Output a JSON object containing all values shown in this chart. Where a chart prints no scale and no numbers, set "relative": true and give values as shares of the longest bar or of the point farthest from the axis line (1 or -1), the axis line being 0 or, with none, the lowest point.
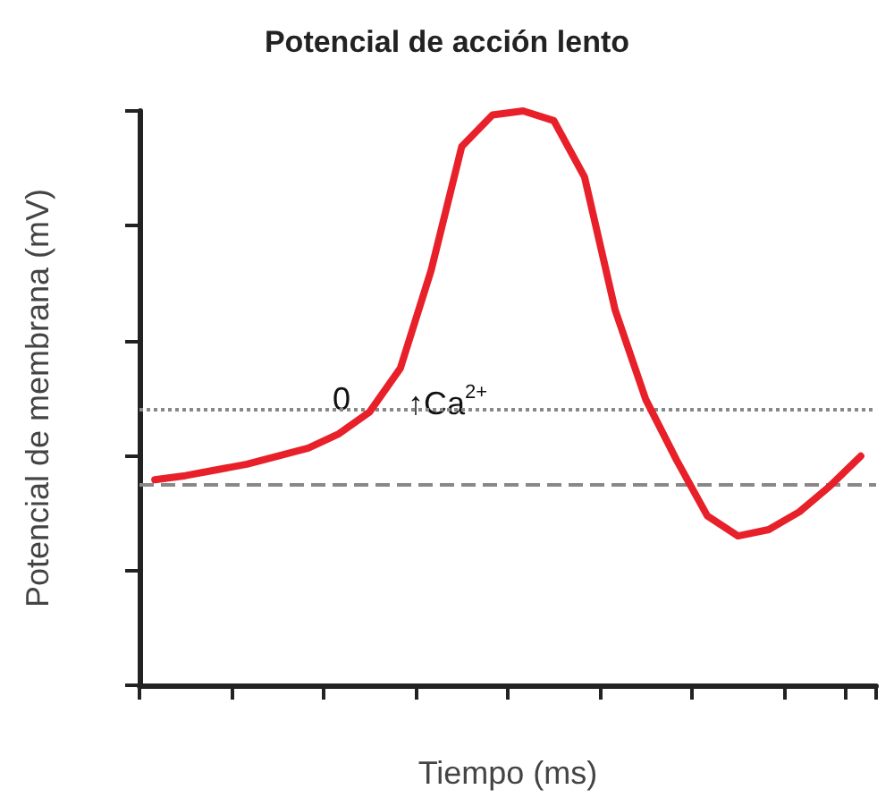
{
  "chart_data": {
    "type": "line",
    "title": "Potencial de acción lento",
    "xlabel": "Tiempo (ms)",
    "ylabel": "Potencial de membrana (mV)",
    "relative": true,
    "grid": false,
    "marker": "none",
    "line_style": "solid",
    "categories": [
      null,
      null,
      null,
      null,
      null,
      null,
      null,
      null,
      null,
      null,
      null,
      null,
      null,
      null,
      null,
      null,
      null,
      null,
      null,
      null,
      null,
      null,
      null,
      null
    ],
    "series": [
      {
        "color": "#e8202a",
        "values": [
          0.358,
          0.365,
          0.375,
          0.385,
          0.399,
          0.413,
          0.438,
          0.476,
          0.552,
          0.722,
          0.938,
          0.993,
          1.0,
          0.983,
          0.885,
          0.653,
          0.497,
          0.392,
          0.295,
          0.26,
          0.271,
          0.302,
          0.347,
          0.399
        ]
      }
    ],
    "ref_lines": [
      {
        "axis": "y",
        "value": 0.479,
        "label": null,
        "color": "#888888",
        "line_style": "dotted"
      },
      {
        "axis": "y",
        "value": 0.347,
        "label": null,
        "color": "#888888",
        "line_style": "dashed"
      }
    ],
    "annotations": [
      "0",
      "↑Ca$^{2+}$"
    ]
  }
}
